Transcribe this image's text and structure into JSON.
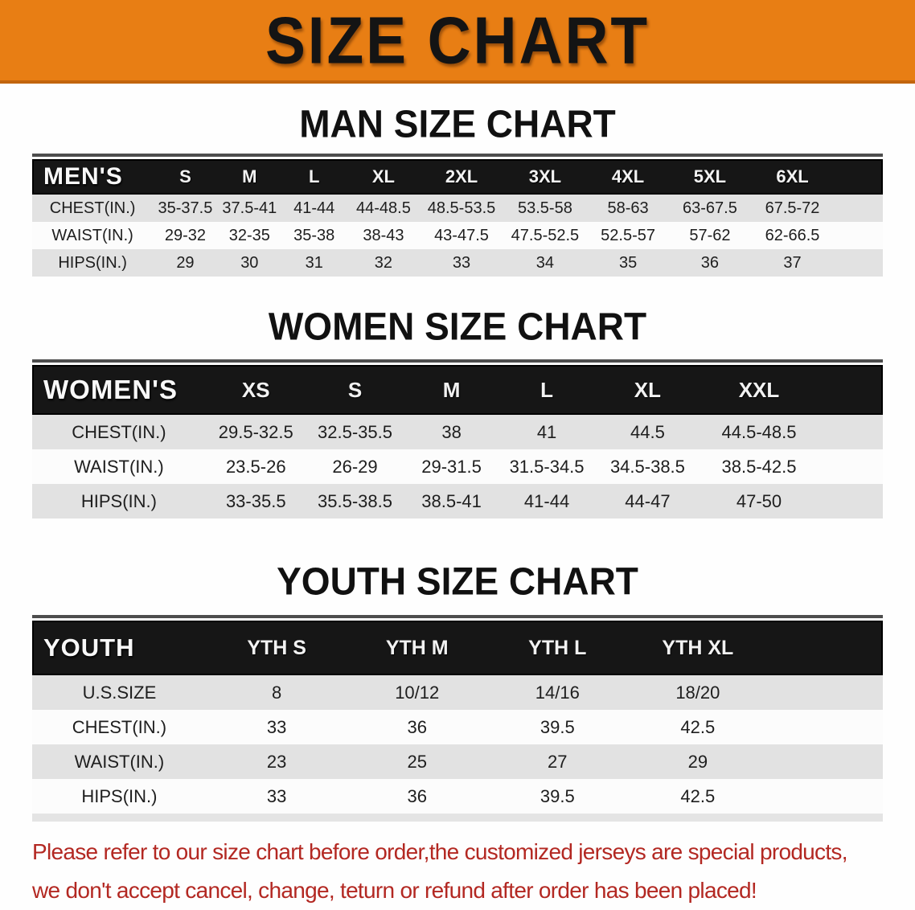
{
  "banner": {
    "title": "SIZE CHART"
  },
  "sections": {
    "men": {
      "title": "MAN SIZE CHART",
      "table": {
        "header_label": "MEN'S",
        "columns": [
          "S",
          "M",
          "L",
          "XL",
          "2XL",
          "3XL",
          "4XL",
          "5XL",
          "6XL"
        ],
        "rows": [
          {
            "label": "CHEST(IN.)",
            "values": [
              "35-37.5",
              "37.5-41",
              "41-44",
              "44-48.5",
              "48.5-53.5",
              "53.5-58",
              "58-63",
              "63-67.5",
              "67.5-72"
            ]
          },
          {
            "label": "WAIST(IN.)",
            "values": [
              "29-32",
              "32-35",
              "35-38",
              "38-43",
              "43-47.5",
              "47.5-52.5",
              "52.5-57",
              "57-62",
              "62-66.5"
            ]
          },
          {
            "label": "HIPS(IN.)",
            "values": [
              "29",
              "30",
              "31",
              "32",
              "33",
              "34",
              "35",
              "36",
              "37"
            ]
          }
        ]
      }
    },
    "women": {
      "title": "WOMEN SIZE CHART",
      "table": {
        "header_label": "WOMEN'S",
        "columns": [
          "XS",
          "S",
          "M",
          "L",
          "XL",
          "XXL"
        ],
        "rows": [
          {
            "label": "CHEST(IN.)",
            "values": [
              "29.5-32.5",
              "32.5-35.5",
              "38",
              "41",
              "44.5",
              "44.5-48.5"
            ]
          },
          {
            "label": "WAIST(IN.)",
            "values": [
              "23.5-26",
              "26-29",
              "29-31.5",
              "31.5-34.5",
              "34.5-38.5",
              "38.5-42.5"
            ]
          },
          {
            "label": "HIPS(IN.)",
            "values": [
              "33-35.5",
              "35.5-38.5",
              "38.5-41",
              "41-44",
              "44-47",
              "47-50"
            ]
          }
        ]
      }
    },
    "youth": {
      "title": "YOUTH SIZE CHART",
      "table": {
        "header_label": "YOUTH",
        "columns": [
          "YTH S",
          "YTH M",
          "YTH L",
          "YTH XL"
        ],
        "rows": [
          {
            "label": "U.S.SIZE",
            "values": [
              "8",
              "10/12",
              "14/16",
              "18/20"
            ]
          },
          {
            "label": "CHEST(IN.)",
            "values": [
              "33",
              "36",
              "39.5",
              "42.5"
            ]
          },
          {
            "label": "WAIST(IN.)",
            "values": [
              "23",
              "25",
              "27",
              "29"
            ]
          },
          {
            "label": "HIPS(IN.)",
            "values": [
              "33",
              "36",
              "39.5",
              "42.5"
            ]
          }
        ]
      }
    }
  },
  "disclaimer": {
    "line1": "Please refer to our size chart before order,the customized jerseys are special products,",
    "line2": "we don't accept cancel, change, teturn or refund after order has been placed!"
  },
  "colors": {
    "banner_orange": "#e87e14",
    "banner_border": "#c2650e",
    "header_bar_black": "#161616",
    "row_gray": "#e2e2e2",
    "row_white": "#fcfcfc",
    "disclaimer_red": "#b32822"
  }
}
